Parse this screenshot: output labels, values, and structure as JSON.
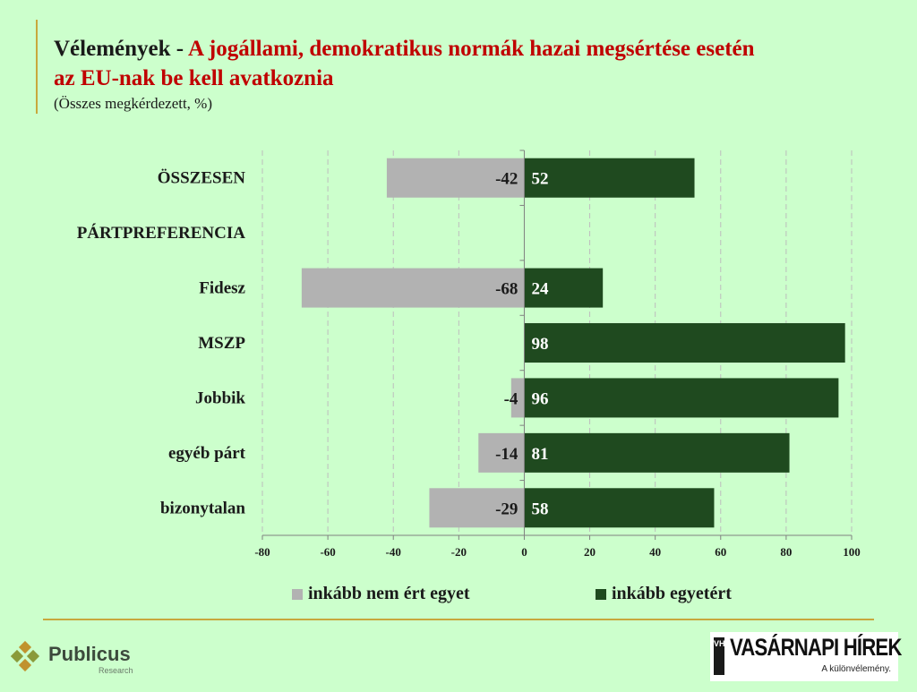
{
  "title": {
    "lead": "Vélemények - ",
    "line1_red": "A jogállami, demokratikus normák hazai megsértése esetén",
    "line2_red": "az EU-nak be kell avatkoznia",
    "subtitle": "(Összes megkérdezett, %)"
  },
  "colors": {
    "background": "#ccffcc",
    "disagree": "#b2b2b2",
    "agree": "#1f4a1f",
    "title_red": "#c00000",
    "rule": "#c8a83c"
  },
  "chart_data": {
    "type": "bar",
    "orientation": "horizontal",
    "stacked": "diverging",
    "categories": [
      "ÖSSZESEN",
      "PÁRTPREFERENCIA",
      "Fidesz",
      "MSZP",
      "Jobbik",
      "egyéb párt",
      "bizonytalan"
    ],
    "series": [
      {
        "name": "inkább nem ért egyet",
        "color": "#b2b2b2",
        "values": [
          -42,
          null,
          -68,
          null,
          -4,
          -14,
          -29
        ]
      },
      {
        "name": "inkább egyetért",
        "color": "#1f4a1f",
        "values": [
          52,
          null,
          24,
          98,
          96,
          81,
          58
        ]
      }
    ],
    "xlim": [
      -80,
      100
    ],
    "xticks": [
      -80,
      -60,
      -40,
      -20,
      0,
      20,
      40,
      60,
      80,
      100
    ],
    "grid": "vertical dashed",
    "legend": "bottom"
  },
  "logos": {
    "publicus": {
      "name": "Publicus",
      "sub": "Research"
    },
    "vh": {
      "mark": "VH",
      "name": "VASÁRNAPI HÍREK",
      "tagline": "A különvélemény."
    }
  }
}
